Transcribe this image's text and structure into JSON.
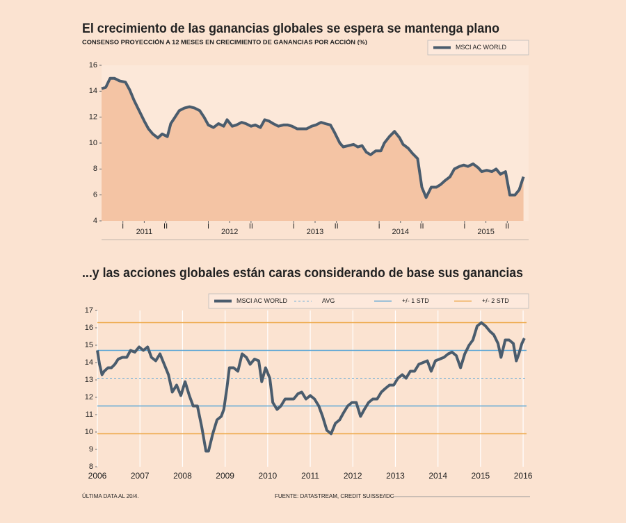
{
  "chart_data": [
    {
      "type": "line",
      "title": "El crecimiento de las ganancias globales se espera se mantenga plano",
      "subtitle": "CONSENSO PROYECCIÓN A 12 MESES EN CRECIMIENTO DE GANANCIAS POR ACCIÓN (%)",
      "x": [
        2011.0,
        2011.05,
        2011.1,
        2011.15,
        2011.21,
        2011.28,
        2011.33,
        2011.38,
        2011.44,
        2011.5,
        2011.55,
        2011.6,
        2011.66,
        2011.71,
        2011.77,
        2011.81,
        2011.86,
        2011.91,
        2011.97,
        2012.03,
        2012.09,
        2012.15,
        2012.2,
        2012.25,
        2012.31,
        2012.37,
        2012.43,
        2012.47,
        2012.53,
        2012.58,
        2012.64,
        2012.69,
        2012.75,
        2012.8,
        2012.86,
        2012.91,
        2012.96,
        2013.01,
        2013.07,
        2013.13,
        2013.18,
        2013.23,
        2013.29,
        2013.35,
        2013.4,
        2013.46,
        2013.51,
        2013.57,
        2013.62,
        2013.68,
        2013.73,
        2013.79,
        2013.83,
        2013.89,
        2013.95,
        2014.0,
        2014.05,
        2014.1,
        2014.15,
        2014.21,
        2014.27,
        2014.31,
        2014.37,
        2014.43,
        2014.49,
        2014.53,
        2014.59,
        2014.64,
        2014.7,
        2014.75,
        2014.8,
        2014.86,
        2014.92,
        2014.97,
        2015.02,
        2015.08,
        2015.13,
        2015.19,
        2015.24,
        2015.29,
        2015.35,
        2015.41,
        2015.45,
        2015.51,
        2015.57,
        2015.62,
        2015.67,
        2015.73,
        2015.78,
        2015.84,
        2015.89,
        2015.94
      ],
      "series": [
        {
          "name": "MSCI AC WORLD",
          "color": "#4a5c6d",
          "values": [
            14.2,
            14.3,
            15.0,
            15.0,
            14.8,
            14.7,
            14.1,
            13.3,
            12.5,
            11.7,
            11.1,
            10.7,
            10.4,
            10.7,
            10.5,
            11.5,
            12.0,
            12.5,
            12.7,
            12.8,
            12.7,
            12.5,
            12.0,
            11.4,
            11.2,
            11.5,
            11.3,
            11.8,
            11.3,
            11.4,
            11.6,
            11.5,
            11.3,
            11.4,
            11.2,
            11.8,
            11.7,
            11.5,
            11.3,
            11.4,
            11.4,
            11.3,
            11.1,
            11.1,
            11.1,
            11.3,
            11.4,
            11.6,
            11.5,
            11.4,
            10.8,
            10.0,
            9.7,
            9.8,
            9.9,
            9.7,
            9.8,
            9.3,
            9.1,
            9.4,
            9.4,
            10.0,
            10.5,
            10.9,
            10.4,
            9.9,
            9.6,
            9.2,
            8.8,
            6.6,
            5.8,
            6.6,
            6.6,
            6.8,
            7.1,
            7.4,
            8.0,
            8.2,
            8.3,
            8.2,
            8.4,
            8.1,
            7.8,
            7.9,
            7.8,
            8.0,
            7.6,
            7.8,
            6.0,
            6.0,
            6.4,
            7.4
          ]
        }
      ],
      "area": true,
      "area_color": "#f4c4a4",
      "xlim": [
        2011,
        2016
      ],
      "xticks": [
        {
          "value": 2011.25,
          "label": "I"
        },
        {
          "value": 2011.5,
          "label": "2011"
        },
        {
          "value": 2011.75,
          "label": "II"
        },
        {
          "value": 2012.25,
          "label": "I"
        },
        {
          "value": 2012.5,
          "label": "2012"
        },
        {
          "value": 2012.75,
          "label": "II"
        },
        {
          "value": 2013.25,
          "label": "I"
        },
        {
          "value": 2013.5,
          "label": "2013"
        },
        {
          "value": 2013.75,
          "label": "II"
        },
        {
          "value": 2014.25,
          "label": "I"
        },
        {
          "value": 2014.5,
          "label": "2014"
        },
        {
          "value": 2014.75,
          "label": "II"
        },
        {
          "value": 2015.25,
          "label": "I"
        },
        {
          "value": 2015.5,
          "label": "2015"
        },
        {
          "value": 2015.75,
          "label": "II"
        }
      ],
      "ylim": [
        4,
        16
      ],
      "yticks": [
        4,
        6,
        8,
        10,
        12,
        14,
        16
      ],
      "grid": false
    },
    {
      "type": "line",
      "title": "...y las acciones globales están caras considerando de base sus ganancias",
      "x": [
        2006.0,
        2006.05,
        2006.11,
        2006.16,
        2006.25,
        2006.33,
        2006.41,
        2006.49,
        2006.59,
        2006.69,
        2006.78,
        2006.88,
        2006.98,
        2007.08,
        2007.18,
        2007.27,
        2007.37,
        2007.47,
        2007.57,
        2007.67,
        2007.76,
        2007.86,
        2007.96,
        2008.06,
        2008.16,
        2008.25,
        2008.35,
        2008.45,
        2008.55,
        2008.61,
        2008.71,
        2008.81,
        2008.91,
        2008.97,
        2009.04,
        2009.1,
        2009.2,
        2009.3,
        2009.4,
        2009.5,
        2009.59,
        2009.69,
        2009.79,
        2009.86,
        2009.95,
        2010.05,
        2010.12,
        2010.22,
        2010.31,
        2010.41,
        2010.51,
        2010.61,
        2010.71,
        2010.8,
        2010.9,
        2011.0,
        2011.1,
        2011.2,
        2011.29,
        2011.39,
        2011.49,
        2011.59,
        2011.69,
        2011.78,
        2011.88,
        2011.98,
        2012.08,
        2012.18,
        2012.27,
        2012.37,
        2012.47,
        2012.57,
        2012.67,
        2012.76,
        2012.86,
        2012.96,
        2013.06,
        2013.16,
        2013.25,
        2013.35,
        2013.45,
        2013.55,
        2013.65,
        2013.75,
        2013.84,
        2013.94,
        2014.04,
        2014.14,
        2014.24,
        2014.33,
        2014.43,
        2014.53,
        2014.63,
        2014.73,
        2014.82,
        2014.92,
        2015.02,
        2015.12,
        2015.22,
        2015.31,
        2015.41,
        2015.48,
        2015.58,
        2015.67,
        2015.77,
        2015.84,
        2015.9,
        2015.97,
        2016.03
      ],
      "series": [
        {
          "name": "MSCI AC WORLD",
          "color": "#4a5c6d",
          "values": [
            14.7,
            13.9,
            13.3,
            13.5,
            13.7,
            13.7,
            13.9,
            14.2,
            14.3,
            14.3,
            14.7,
            14.6,
            14.9,
            14.7,
            14.9,
            14.3,
            14.1,
            14.5,
            13.9,
            13.3,
            12.3,
            12.7,
            12.1,
            12.9,
            12.1,
            11.5,
            11.5,
            10.3,
            8.9,
            8.9,
            9.9,
            10.7,
            10.9,
            11.3,
            12.5,
            13.7,
            13.7,
            13.5,
            14.5,
            14.3,
            13.9,
            14.2,
            14.1,
            12.9,
            13.7,
            13.1,
            11.7,
            11.3,
            11.5,
            11.9,
            11.9,
            11.9,
            12.2,
            12.3,
            11.9,
            12.1,
            11.9,
            11.5,
            10.9,
            10.1,
            9.9,
            10.5,
            10.7,
            11.1,
            11.5,
            11.7,
            11.7,
            10.9,
            11.3,
            11.7,
            11.9,
            11.9,
            12.3,
            12.5,
            12.7,
            12.7,
            13.1,
            13.3,
            13.1,
            13.5,
            13.5,
            13.9,
            14.0,
            14.1,
            13.5,
            14.1,
            14.2,
            14.3,
            14.5,
            14.6,
            14.4,
            13.7,
            14.5,
            15.0,
            15.3,
            16.1,
            16.3,
            16.1,
            15.8,
            15.6,
            15.1,
            14.3,
            15.3,
            15.3,
            15.1,
            14.1,
            14.5,
            15.1,
            15.4
          ]
        }
      ],
      "reference_lines": [
        {
          "name": "AVG",
          "color": "#5aa5d6",
          "dashed": true,
          "values": [
            13.1
          ]
        },
        {
          "name": "+/- 1 STD",
          "color": "#5aa5d6",
          "dashed": false,
          "values": [
            11.5,
            14.7
          ]
        },
        {
          "name": "+/- 2 STD",
          "color": "#eda848",
          "dashed": false,
          "values": [
            9.9,
            16.3
          ]
        }
      ],
      "xlim": [
        2006,
        2016.08
      ],
      "xticks": [
        2006,
        2007,
        2008,
        2009,
        2010,
        2011,
        2012,
        2013,
        2014,
        2015,
        2016
      ],
      "ylim": [
        8,
        17
      ],
      "yticks": [
        8,
        9,
        10,
        11,
        12,
        13,
        14,
        15,
        16,
        17
      ],
      "grid": true,
      "note": "ÚLTIMA DATA AL 20/4.",
      "source": "FUENTE: DATASTREAM, CREDIT SUISSE/IDC"
    }
  ]
}
